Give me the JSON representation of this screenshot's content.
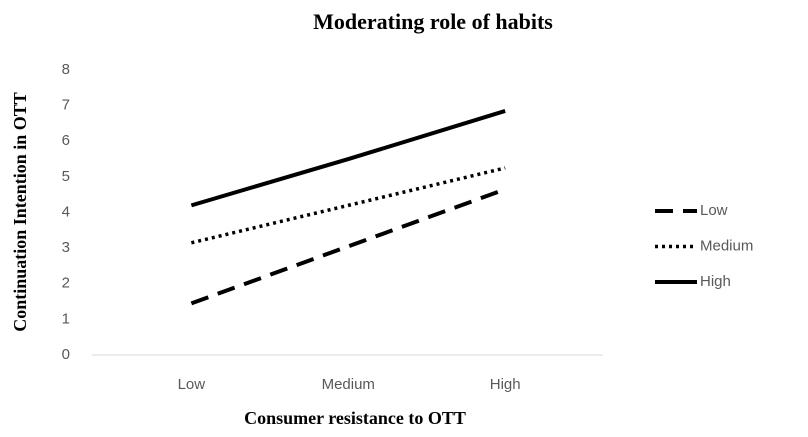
{
  "chart_data": {
    "type": "line",
    "title": "Moderating role of habits",
    "x_label": "Consumer resistance to OTT",
    "y_label": "Continuation Intention in OTT",
    "categories": [
      "Low",
      "Medium",
      "High"
    ],
    "series": [
      {
        "name": "Low",
        "color": "#000000",
        "dash": "dashed",
        "values": [
          1.45,
          3.05,
          4.65
        ]
      },
      {
        "name": "Medium",
        "color": "#000000",
        "dash": "dotted",
        "values": [
          3.15,
          4.2,
          5.25
        ]
      },
      {
        "name": "High",
        "color": "#000000",
        "dash": "solid",
        "values": [
          4.2,
          5.5,
          6.85
        ]
      }
    ],
    "ylim": [
      0,
      8
    ],
    "yticks": [
      0,
      1,
      2,
      3,
      4,
      5,
      6,
      7,
      8
    ],
    "grid": false,
    "legend": "right"
  }
}
